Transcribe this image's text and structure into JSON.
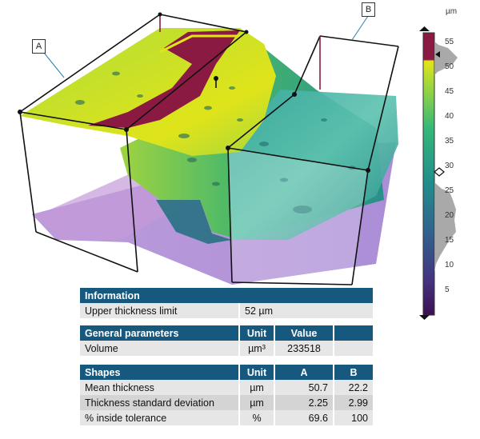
{
  "labels": {
    "a": "A",
    "b": "B"
  },
  "scale": {
    "unit": "µm",
    "ticks": [
      "55",
      "50",
      "45",
      "40",
      "35",
      "30",
      "25",
      "20",
      "15",
      "10",
      "5"
    ],
    "min": 0,
    "max": 57,
    "upper_marker": 52,
    "diamond_marker": 28
  },
  "info": {
    "header": "Information",
    "row_label": "Upper thickness limit",
    "row_value": "52 µm"
  },
  "general": {
    "h_name": "General parameters",
    "h_unit": "Unit",
    "h_value": "Value",
    "row_label": "Volume",
    "row_unit": "µm³",
    "row_value": "233518"
  },
  "shapes": {
    "h_name": "Shapes",
    "h_unit": "Unit",
    "h_a": "A",
    "h_b": "B",
    "rows": [
      {
        "label": "Mean thickness",
        "unit": "µm",
        "a": "50.7",
        "b": "22.2"
      },
      {
        "label": "Thickness standard deviation",
        "unit": "µm",
        "a": "2.25",
        "b": "2.99"
      },
      {
        "label": "% inside tolerance",
        "unit": "%",
        "a": "69.6",
        "b": "100"
      }
    ]
  },
  "colors": {
    "header_bg": "#17587e",
    "row_light": "#e6e6e6",
    "row_dark": "#d4d4d4",
    "colormap": [
      "#3b0f52",
      "#433b84",
      "#2f6b8e",
      "#21908c",
      "#35b779",
      "#8fd744",
      "#e3e418",
      "#8b1a43"
    ]
  }
}
